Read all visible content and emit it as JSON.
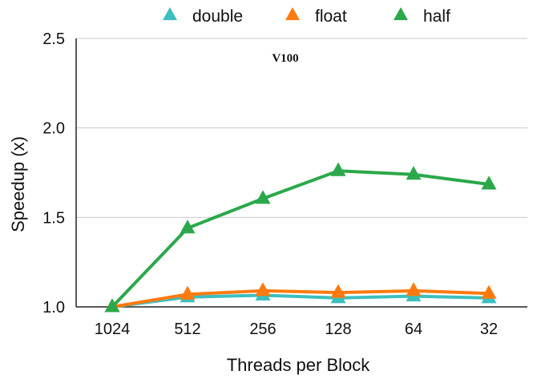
{
  "chart_data": {
    "type": "line",
    "title": "V100",
    "xlabel": "Threads per Block",
    "ylabel": "Speedup (x)",
    "categories": [
      "1024",
      "512",
      "256",
      "128",
      "64",
      "32"
    ],
    "ylim": [
      1.0,
      2.5
    ],
    "yticks": [
      "1.0",
      "1.5",
      "2.0",
      "2.5"
    ],
    "grid": true,
    "legend_position": "top",
    "series": [
      {
        "name": "double",
        "color": "#3BBFBF",
        "values": [
          1.0,
          1.055,
          1.065,
          1.05,
          1.06,
          1.05
        ]
      },
      {
        "name": "float",
        "color": "#FF7A0E",
        "values": [
          1.0,
          1.07,
          1.09,
          1.08,
          1.09,
          1.075
        ]
      },
      {
        "name": "half",
        "color": "#2BA84A",
        "values": [
          1.0,
          1.44,
          1.605,
          1.76,
          1.74,
          1.685
        ]
      }
    ]
  }
}
